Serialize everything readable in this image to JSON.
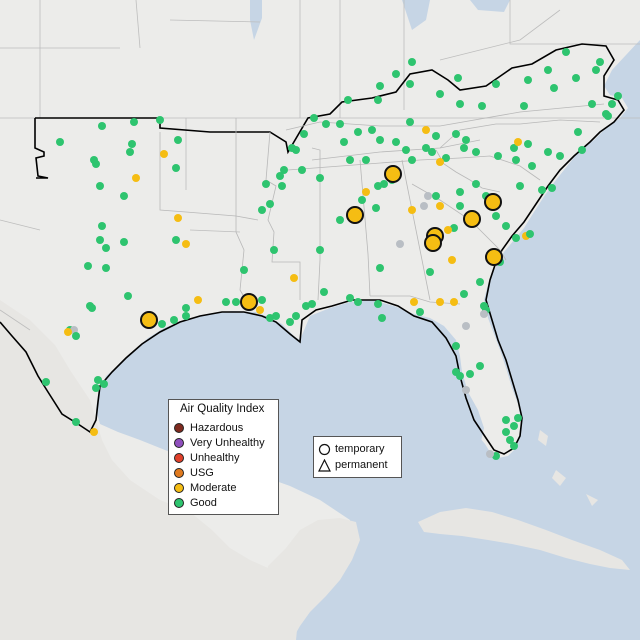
{
  "map": {
    "colors": {
      "land": "#ececea",
      "land_mexico": "#e7e6e3",
      "water": "#c6d5e5",
      "deep_water": "#c0d0e2",
      "borders_thin": "#bdbdbd",
      "outline": "#000000"
    }
  },
  "legend": {
    "title": "Air Quality Index",
    "categories": [
      {
        "label": "Hazardous",
        "color": "#7e2a1e"
      },
      {
        "label": "Very Unhealthy",
        "color": "#8f4fbd"
      },
      {
        "label": "Unhealthy",
        "color": "#e0402a"
      },
      {
        "label": "USG",
        "color": "#e07a1f"
      },
      {
        "label": "Moderate",
        "color": "#f5bd13"
      },
      {
        "label": "Good",
        "color": "#2ec46f"
      }
    ]
  },
  "site_legend": {
    "items": [
      {
        "label": "temporary",
        "icon": "circle-outline-icon"
      },
      {
        "label": "permanent",
        "icon": "triangle-outline-icon"
      }
    ]
  }
}
